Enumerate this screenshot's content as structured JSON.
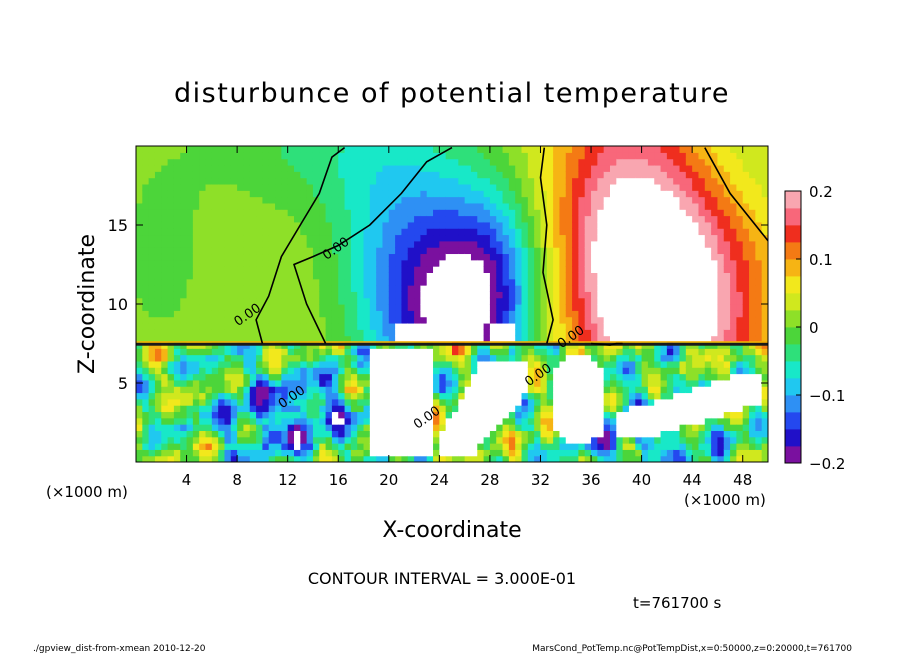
{
  "chart_data": {
    "type": "heatmap",
    "title": "disturbunce of potential temperature",
    "xlabel": "X-coordinate",
    "ylabel": "Z-coordinate",
    "x_unit_left": "(×1000 m)",
    "x_unit_right": "(×1000 m)",
    "xlim": [
      0,
      50
    ],
    "ylim": [
      0,
      20
    ],
    "x_ticks": [
      4,
      8,
      12,
      16,
      20,
      24,
      28,
      32,
      36,
      40,
      44,
      48
    ],
    "y_ticks": [
      5,
      10,
      15
    ],
    "colorbar": {
      "range": [
        -0.2,
        0.2
      ],
      "ticks": [
        {
          "value": 0.2,
          "label": "0.2"
        },
        {
          "value": 0.1,
          "label": "0.1"
        },
        {
          "value": 0,
          "label": "0"
        },
        {
          "value": -0.1,
          "label": "−0.1"
        },
        {
          "value": -0.2,
          "label": "−0.2"
        }
      ],
      "colors": [
        "#7a109f",
        "#2010c8",
        "#2448ef",
        "#2e90f4",
        "#20c8f0",
        "#18e8c8",
        "#2ee07a",
        "#4cd53a",
        "#8ee028",
        "#d0e81e",
        "#f2e81c",
        "#f6b414",
        "#f47a14",
        "#ef2e1e",
        "#f8677a",
        "#f9a6b0"
      ]
    },
    "contour_labels": [
      {
        "x": 16,
        "z": 13.3,
        "text": "0.00"
      },
      {
        "x": 9,
        "z": 9.1,
        "text": "0.00"
      },
      {
        "x": 34.6,
        "z": 7.7,
        "text": "0.00"
      },
      {
        "x": 32,
        "z": 5.3,
        "text": "0.00"
      },
      {
        "x": 12.5,
        "z": 3.9,
        "text": "0.00"
      },
      {
        "x": 23.2,
        "z": 2.6,
        "text": "0.00"
      }
    ],
    "zero_contours": [
      [
        [
          10,
          7.5
        ],
        [
          9.5,
          9
        ],
        [
          10.5,
          10.5
        ],
        [
          11.5,
          13
        ],
        [
          13,
          15
        ],
        [
          14.5,
          17
        ],
        [
          15.5,
          19.3
        ],
        [
          16.5,
          19.9
        ]
      ],
      [
        [
          15,
          7.5
        ],
        [
          13.5,
          10
        ],
        [
          12.5,
          12.5
        ],
        [
          14,
          13
        ],
        [
          16,
          13.7
        ],
        [
          18.5,
          15
        ],
        [
          21,
          17
        ],
        [
          23,
          19
        ],
        [
          25,
          19.9
        ]
      ],
      [
        [
          32.5,
          7.5
        ],
        [
          33,
          9
        ],
        [
          32.2,
          12
        ],
        [
          32.5,
          15
        ],
        [
          32,
          18
        ],
        [
          32.3,
          19.9
        ]
      ],
      [
        [
          38.5,
          7.5
        ],
        [
          38,
          7.5
        ],
        [
          37.5,
          7.4
        ],
        [
          36,
          7.5
        ]
      ],
      [
        [
          45,
          19.9
        ],
        [
          47,
          17
        ],
        [
          49,
          15
        ],
        [
          50,
          14
        ]
      ]
    ],
    "contour_interval_text": "CONTOUR INTERVAL = 3.000E-01",
    "time_text": "t=761700 s",
    "footer_left": "./gpview_dist-from-xmean  2010-12-20",
    "footer_right": "MarsCond_PotTemp.nc@PotTempDist,x=0:50000,z=0:20000,t=761700"
  }
}
